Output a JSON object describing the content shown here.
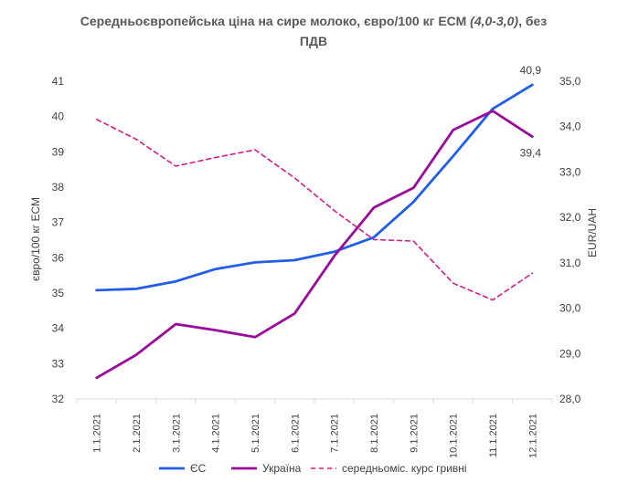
{
  "chart_data": {
    "type": "line",
    "title_line1_main": "Середньоєвропейська ціна на сире молоко, євро/100 кг ЕСМ ",
    "title_line1_italic": "(4,0-3,0)",
    "title_line1_tail": ", без",
    "title_line2": "ПДВ",
    "categories": [
      "1.1.2021",
      "2.1.2021",
      "3.1.2021",
      "4.1.2021",
      "5.1.2021",
      "6.1.2021",
      "7.1.2021",
      "8.1.2021",
      "9.1.2021",
      "10.1.2021",
      "11.1.2021",
      "12.1.2021"
    ],
    "y_left": {
      "label": "євро/100 кг ЕСМ",
      "min": 32,
      "max": 41,
      "ticks": [
        "32",
        "33",
        "34",
        "35",
        "36",
        "37",
        "38",
        "39",
        "40",
        "41"
      ]
    },
    "y_right": {
      "label": "EUR/UAH",
      "min": 28.0,
      "max": 35.0,
      "ticks": [
        "28,0",
        "29,0",
        "30,0",
        "31,0",
        "32,0",
        "33,0",
        "34,0",
        "35,0"
      ]
    },
    "series": [
      {
        "name": "ЄС",
        "axis": "left",
        "color": "#1f5ee8",
        "style": "solid",
        "values": [
          35.08,
          35.12,
          35.33,
          35.68,
          35.87,
          35.93,
          36.17,
          36.58,
          37.58,
          38.88,
          40.22,
          40.9
        ]
      },
      {
        "name": "Україна",
        "axis": "left",
        "color": "#9b0b9b",
        "style": "solid",
        "values": [
          32.6,
          33.25,
          34.12,
          33.95,
          33.75,
          34.42,
          36.05,
          37.42,
          37.98,
          39.62,
          40.16,
          39.43
        ]
      },
      {
        "name": "середньоміс. курс гривні",
        "axis": "right",
        "color": "#d7198f",
        "style": "dashed",
        "values": [
          34.16,
          33.72,
          33.13,
          33.32,
          33.49,
          32.87,
          32.15,
          31.51,
          31.48,
          30.55,
          30.18,
          30.77
        ]
      }
    ],
    "data_labels": [
      {
        "series": 0,
        "index": 11,
        "text": "40,9",
        "position": "above"
      },
      {
        "series": 1,
        "index": 11,
        "text": "39,4",
        "position": "below"
      }
    ],
    "legend_position": "bottom",
    "grid": false
  }
}
